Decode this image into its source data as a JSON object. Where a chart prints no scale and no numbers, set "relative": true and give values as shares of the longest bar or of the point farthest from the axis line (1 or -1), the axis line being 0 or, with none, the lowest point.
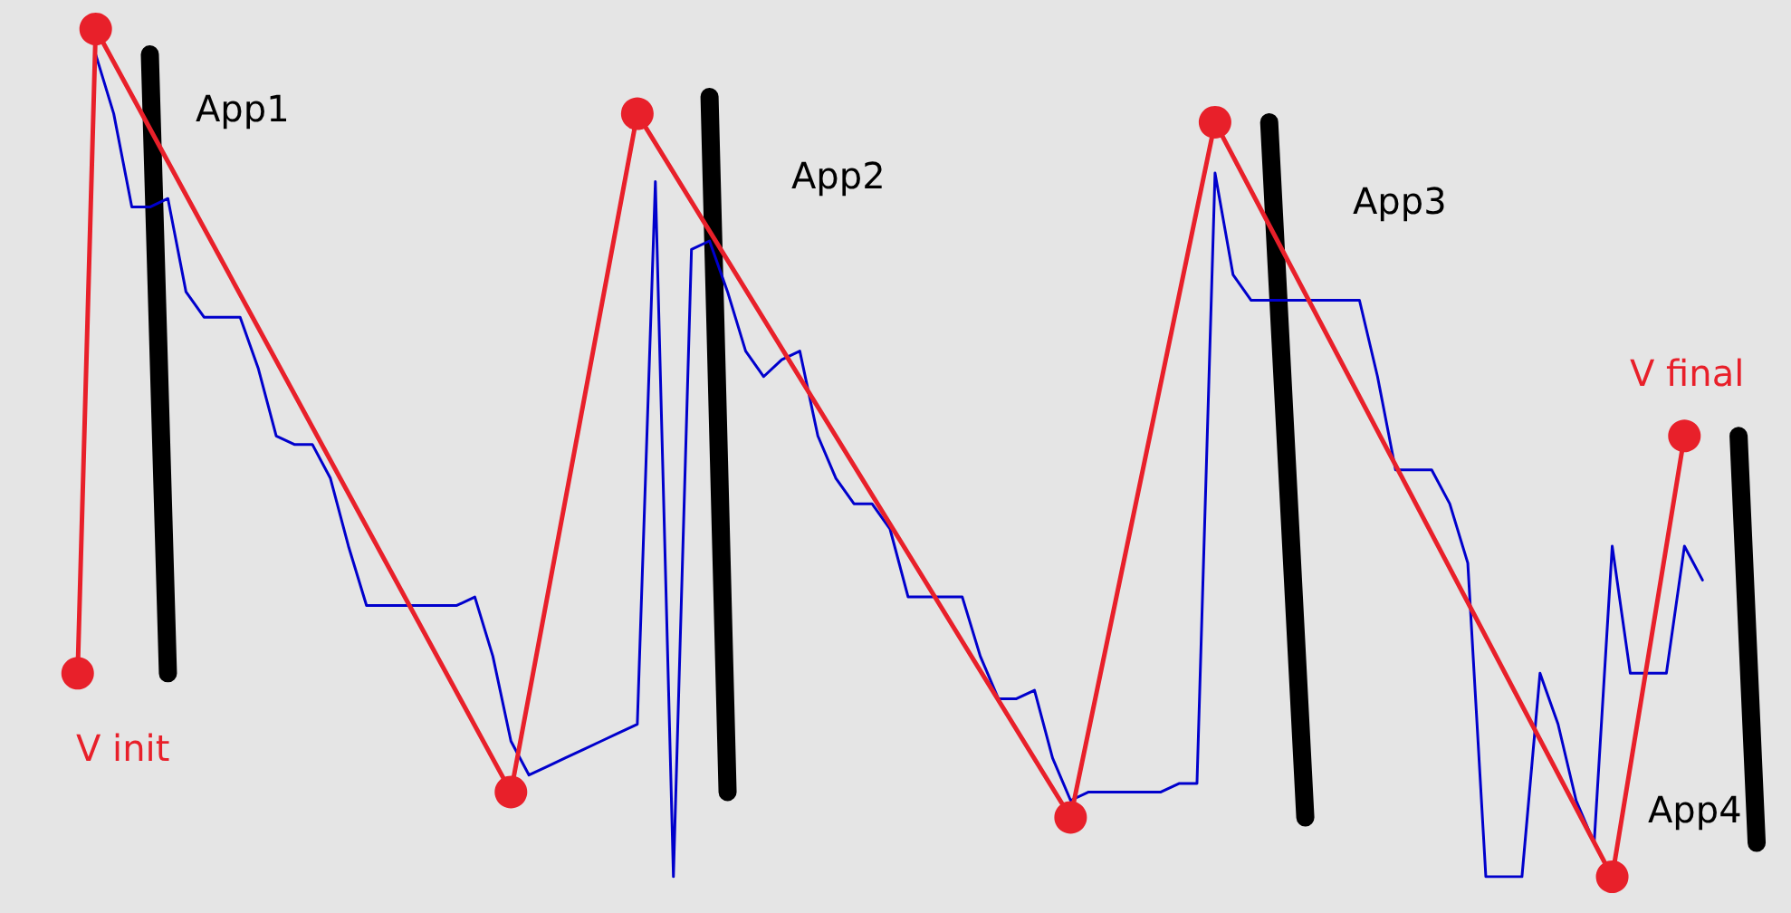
{
  "chart_data": {
    "type": "line",
    "relative": true,
    "categories": [
      null,
      null,
      null,
      null,
      null,
      null,
      null,
      null,
      null,
      null,
      null,
      null,
      null,
      null,
      null,
      null,
      null,
      null,
      null,
      null,
      null,
      null,
      null,
      null,
      null,
      null,
      null,
      null,
      null,
      null,
      null,
      null,
      null,
      null,
      null,
      null,
      null,
      null,
      null,
      null,
      null,
      null,
      null,
      null,
      null,
      null,
      null,
      null,
      null,
      null,
      null,
      null,
      null,
      null,
      null,
      null,
      null,
      null,
      null,
      null,
      null,
      null,
      null,
      null,
      null,
      null,
      null,
      null,
      null,
      null,
      null,
      null,
      null,
      null,
      null,
      null,
      null,
      null,
      null,
      null,
      null,
      null,
      null,
      null,
      null,
      null,
      null,
      null,
      null,
      null,
      null,
      null,
      null,
      null,
      null,
      null,
      null,
      null,
      null
    ],
    "annotations": [
      "App1",
      "App2",
      "App3",
      "App4",
      "V init",
      "V final"
    ],
    "series": [
      {
        "color": "#0000cc",
        "marker": "none",
        "values": [
          null,
          null,
          null,
          null,
          null,
          0.97,
          0.9,
          0.79,
          0.79,
          0.8,
          0.69,
          0.66,
          0.66,
          0.66,
          0.6,
          0.52,
          0.51,
          0.51,
          0.47,
          0.39,
          0.32,
          0.32,
          0.32,
          0.32,
          0.32,
          0.32,
          0.33,
          0.26,
          0.16,
          0.12,
          0.13,
          0.14,
          0.15,
          0.16,
          0.17,
          0.18,
          0.82,
          0,
          0.74,
          0.75,
          0.69,
          0.62,
          0.59,
          0.61,
          0.62,
          0.52,
          0.47,
          0.44,
          0.44,
          0.41,
          0.33,
          0.33,
          0.33,
          0.33,
          0.26,
          0.21,
          0.21,
          0.22,
          0.14,
          0.09,
          0.1,
          0.1,
          0.1,
          0.1,
          0.1,
          0.11,
          0.11,
          0.83,
          0.71,
          0.68,
          0.68,
          0.68,
          0.68,
          0.68,
          0.68,
          0.68,
          0.59,
          0.48,
          0.48,
          0.48,
          0.44,
          0.37,
          0,
          0,
          0,
          0.24,
          0.18,
          0.09,
          0.04,
          0.39,
          0.24,
          0.24,
          0.24,
          0.39,
          0.35,
          null,
          null,
          null,
          null
        ]
      },
      {
        "color": "#e8202a",
        "marker": "circle",
        "values": [
          null,
          null,
          null,
          null,
          0.24,
          1,
          null,
          null,
          null,
          null,
          null,
          null,
          null,
          null,
          null,
          null,
          null,
          null,
          null,
          null,
          null,
          null,
          null,
          null,
          null,
          null,
          null,
          null,
          0.1,
          null,
          null,
          null,
          null,
          null,
          null,
          0.9,
          null,
          null,
          null,
          null,
          null,
          null,
          null,
          null,
          null,
          null,
          null,
          null,
          null,
          null,
          null,
          null,
          null,
          null,
          null,
          null,
          null,
          null,
          null,
          0.07,
          null,
          null,
          null,
          null,
          null,
          null,
          null,
          0.89,
          null,
          null,
          null,
          null,
          null,
          null,
          null,
          null,
          null,
          null,
          null,
          null,
          null,
          null,
          null,
          null,
          null,
          null,
          null,
          null,
          null,
          0,
          null,
          null,
          null,
          0.52,
          null,
          null,
          null,
          null,
          null
        ]
      },
      {
        "color": "#000000",
        "marker": "none",
        "values": [
          null,
          null,
          null,
          null,
          null,
          null,
          null,
          null,
          0.97,
          0.24,
          null,
          null,
          null,
          null,
          null,
          null,
          null,
          null,
          null,
          null,
          null,
          null,
          null,
          null,
          null,
          null,
          null,
          null,
          null,
          null,
          null,
          null,
          null,
          null,
          null,
          null,
          null,
          null,
          null,
          null,
          null,
          null,
          null,
          null,
          null,
          null,
          null,
          null,
          null,
          null,
          null,
          null,
          null,
          null,
          null,
          null,
          null,
          null,
          null,
          null,
          null,
          null,
          null,
          null,
          null,
          null,
          null,
          null,
          null,
          null,
          null,
          null,
          null,
          null,
          null,
          null,
          null,
          null,
          null,
          null,
          null,
          null,
          null,
          null,
          null,
          null,
          null,
          null,
          null,
          null,
          null,
          null,
          null,
          null,
          null,
          null,
          null,
          null,
          null
        ]
      },
      {
        "color": "#000000",
        "marker": "none",
        "values": [
          null,
          null,
          null,
          null,
          null,
          null,
          null,
          null,
          null,
          null,
          null,
          null,
          null,
          null,
          null,
          null,
          null,
          null,
          null,
          null,
          null,
          null,
          null,
          null,
          null,
          null,
          null,
          null,
          null,
          null,
          null,
          null,
          null,
          null,
          null,
          null,
          null,
          null,
          null,
          0.92,
          0.1,
          null,
          null,
          null,
          null,
          null,
          null,
          null,
          null,
          null,
          null,
          null,
          null,
          null,
          null,
          null,
          null,
          null,
          null,
          null,
          null,
          null,
          null,
          null,
          null,
          null,
          null,
          null,
          null,
          null,
          null,
          null,
          null,
          null,
          null,
          null,
          null,
          null,
          null,
          null,
          null,
          null,
          null,
          null,
          null,
          null,
          null,
          null,
          null,
          null,
          null,
          null,
          null,
          null,
          null,
          null,
          null,
          null,
          null
        ]
      },
      {
        "color": "#000000",
        "marker": "none",
        "values": [
          null,
          null,
          null,
          null,
          null,
          null,
          null,
          null,
          null,
          null,
          null,
          null,
          null,
          null,
          null,
          null,
          null,
          null,
          null,
          null,
          null,
          null,
          null,
          null,
          null,
          null,
          null,
          null,
          null,
          null,
          null,
          null,
          null,
          null,
          null,
          null,
          null,
          null,
          null,
          null,
          null,
          null,
          null,
          null,
          null,
          null,
          null,
          null,
          null,
          null,
          null,
          null,
          null,
          null,
          null,
          null,
          null,
          null,
          null,
          null,
          null,
          null,
          null,
          null,
          null,
          null,
          null,
          null,
          null,
          null,
          0.89,
          null,
          0.07,
          null,
          null,
          null,
          null,
          null,
          null,
          null,
          null,
          null,
          null,
          null,
          null,
          null,
          null,
          null,
          null,
          null,
          null,
          null,
          null,
          null,
          null,
          null,
          null,
          null,
          null
        ]
      },
      {
        "color": "#000000",
        "marker": "none",
        "values": [
          null,
          null,
          null,
          null,
          null,
          null,
          null,
          null,
          null,
          null,
          null,
          null,
          null,
          null,
          null,
          null,
          null,
          null,
          null,
          null,
          null,
          null,
          null,
          null,
          null,
          null,
          null,
          null,
          null,
          null,
          null,
          null,
          null,
          null,
          null,
          null,
          null,
          null,
          null,
          null,
          null,
          null,
          null,
          null,
          null,
          null,
          null,
          null,
          null,
          null,
          null,
          null,
          null,
          null,
          null,
          null,
          null,
          null,
          null,
          null,
          null,
          null,
          null,
          null,
          null,
          null,
          null,
          null,
          null,
          null,
          null,
          null,
          null,
          null,
          null,
          null,
          null,
          null,
          null,
          null,
          null,
          null,
          null,
          null,
          null,
          null,
          null,
          null,
          null,
          null,
          null,
          null,
          null,
          null,
          null,
          null,
          0.52,
          0.04,
          null
        ]
      }
    ]
  }
}
